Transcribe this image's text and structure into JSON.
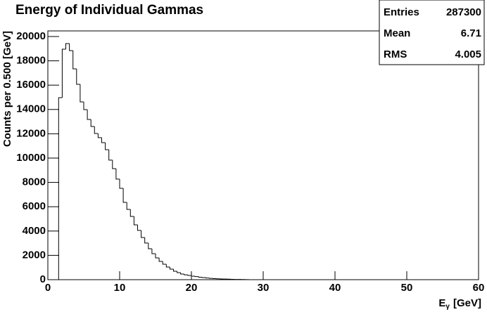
{
  "chart_data": {
    "type": "histogram",
    "title": "Energy of Individual Gammas",
    "y_label": "Counts per 0.500 [GeV]",
    "x_label": [
      "E",
      "γ",
      "[GeV]"
    ],
    "stats": [
      {
        "label": "Entries",
        "value": 287300
      },
      {
        "label": "Mean",
        "value": 6.71
      },
      {
        "label": "RMS",
        "value": 4.005
      }
    ],
    "bins": [
      0,
      0.5,
      1,
      1.5,
      2,
      2.5,
      3,
      3.5,
      4,
      4.5,
      5,
      5.5,
      6,
      6.5,
      7,
      7.5,
      8,
      8.5,
      9,
      9.5,
      10,
      10.5,
      11,
      11.5,
      12,
      12.5,
      13,
      13.5,
      14,
      14.5,
      15,
      15.5,
      16,
      16.5,
      17,
      17.5,
      18,
      18.5,
      19,
      19.5,
      20,
      20.5,
      21,
      21.5,
      22,
      22.5,
      23,
      23.5,
      24,
      24.5,
      25,
      25.5,
      26,
      26.5,
      27,
      27.5,
      28,
      28.5,
      29,
      29.5,
      30,
      30.5,
      31,
      31.5,
      32,
      32.5,
      33,
      33.5,
      34,
      34.5,
      35,
      35.5,
      36,
      36.5,
      37,
      37.5,
      38,
      38.5,
      39,
      39.5,
      40,
      40.5,
      41,
      41.5,
      42,
      42.5,
      43,
      43.5,
      44,
      44.5,
      45,
      45.5,
      46,
      46.5,
      47,
      47.5,
      48,
      48.5,
      49,
      49.5,
      50,
      50.5,
      51,
      51.5,
      52,
      52.5,
      53,
      53.5,
      54,
      54.5,
      55,
      55.5,
      56,
      56.5,
      57,
      57.5,
      58,
      58.5,
      59,
      59.5,
      60
    ],
    "counts": [
      0,
      0,
      0,
      14970,
      18960,
      19420,
      18840,
      17340,
      16070,
      14620,
      13990,
      13180,
      12600,
      12020,
      11680,
      11270,
      10690,
      9830,
      9130,
      8270,
      7510,
      6360,
      5780,
      5200,
      4510,
      4050,
      3470,
      3010,
      2540,
      2140,
      1790,
      1500,
      1270,
      1040,
      870,
      690,
      580,
      460,
      400,
      350,
      290,
      250,
      200,
      170,
      140,
      110,
      90,
      70,
      60,
      50,
      40,
      30,
      25,
      20,
      15,
      10,
      0,
      0,
      0,
      0,
      0,
      0,
      0,
      0,
      0,
      0,
      0,
      0,
      0,
      0,
      0,
      0,
      0,
      0,
      0,
      0,
      0,
      0,
      0,
      0,
      0,
      0,
      0,
      0,
      0,
      0,
      0,
      0,
      0,
      0,
      0,
      0,
      0,
      0,
      0,
      0,
      0,
      0,
      0,
      0,
      0,
      0,
      0,
      0,
      0,
      0,
      0,
      0,
      0,
      0,
      0,
      0,
      0,
      0,
      0,
      0,
      0,
      0,
      0,
      0
    ],
    "color": "#000000",
    "xlim": [
      0,
      60
    ],
    "xticks": [
      0,
      10,
      20,
      30,
      40,
      50,
      60
    ],
    "ylim": [
      0,
      20460
    ],
    "yticks": [
      0,
      2000,
      4000,
      6000,
      8000,
      10000,
      12000,
      14000,
      16000,
      18000,
      20000
    ]
  }
}
